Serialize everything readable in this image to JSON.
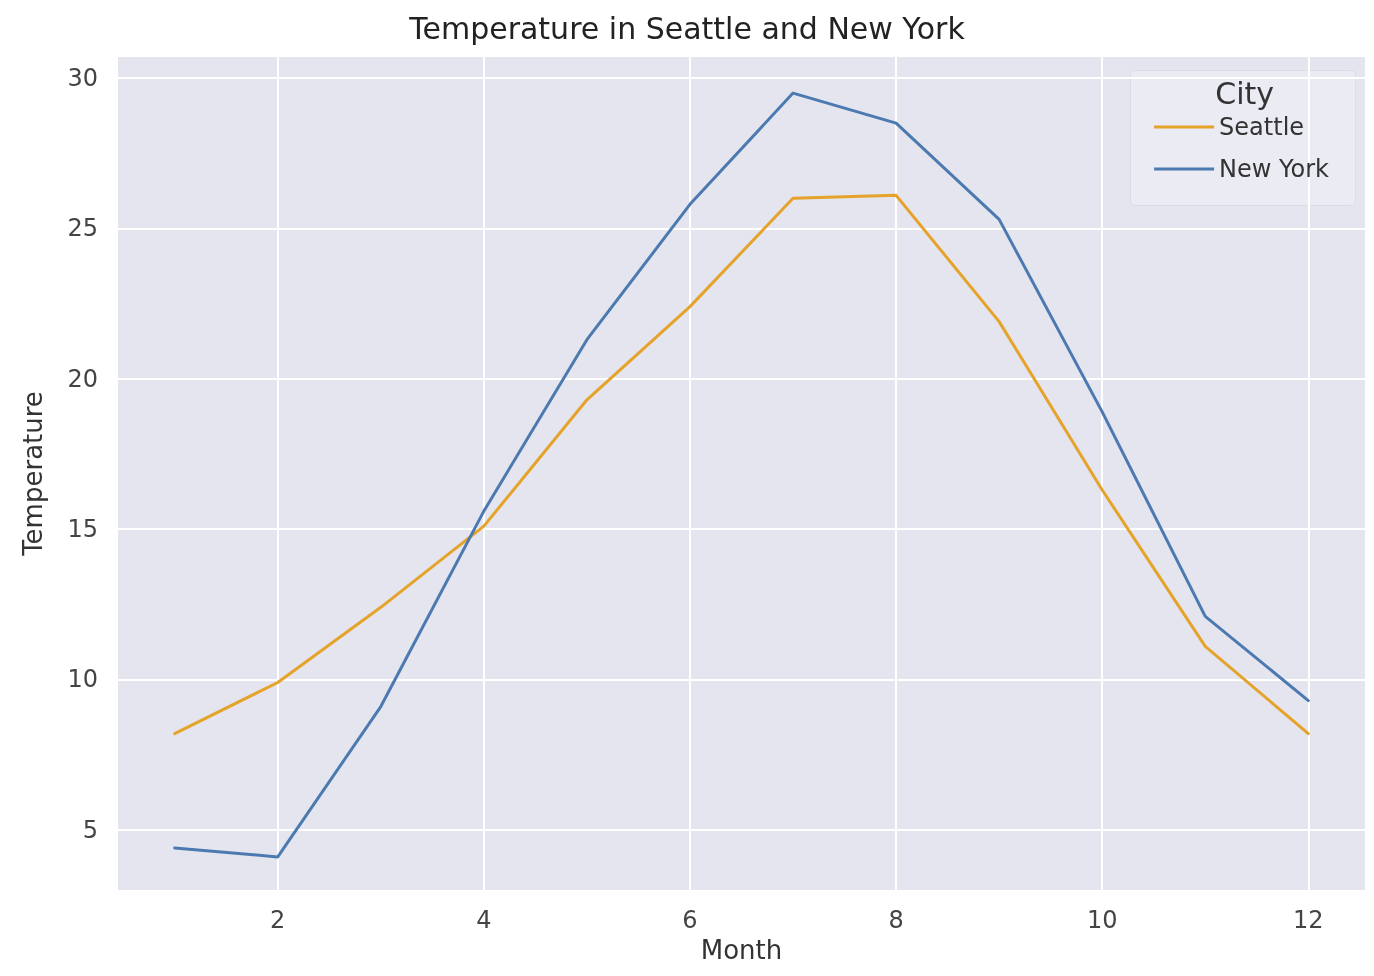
{
  "chart_data": {
    "type": "line",
    "title": "Temperature in Seattle and New York",
    "xlabel": "Month",
    "ylabel": "Temperature",
    "legend_title": "City",
    "x": [
      1,
      2,
      3,
      4,
      5,
      6,
      7,
      8,
      9,
      10,
      11,
      12
    ],
    "series": [
      {
        "name": "Seattle",
        "color": "#e5a32a",
        "values": [
          8.2,
          9.9,
          12.4,
          15.1,
          19.3,
          22.4,
          26.0,
          26.1,
          21.9,
          16.3,
          11.1,
          8.2
        ]
      },
      {
        "name": "New York",
        "color": "#4c7ab0",
        "values": [
          4.4,
          4.1,
          9.1,
          15.6,
          21.3,
          25.8,
          29.5,
          28.5,
          25.3,
          18.9,
          12.1,
          9.3
        ]
      }
    ],
    "xlim": [
      0.45,
      12.55
    ],
    "xticks": [
      2,
      4,
      6,
      8,
      10,
      12
    ],
    "ylim": [
      3,
      30.7
    ],
    "yticks": [
      5,
      10,
      15,
      20,
      25,
      30
    ],
    "grid": true,
    "legend": "top right",
    "marker": "none",
    "line_style": "solid"
  }
}
